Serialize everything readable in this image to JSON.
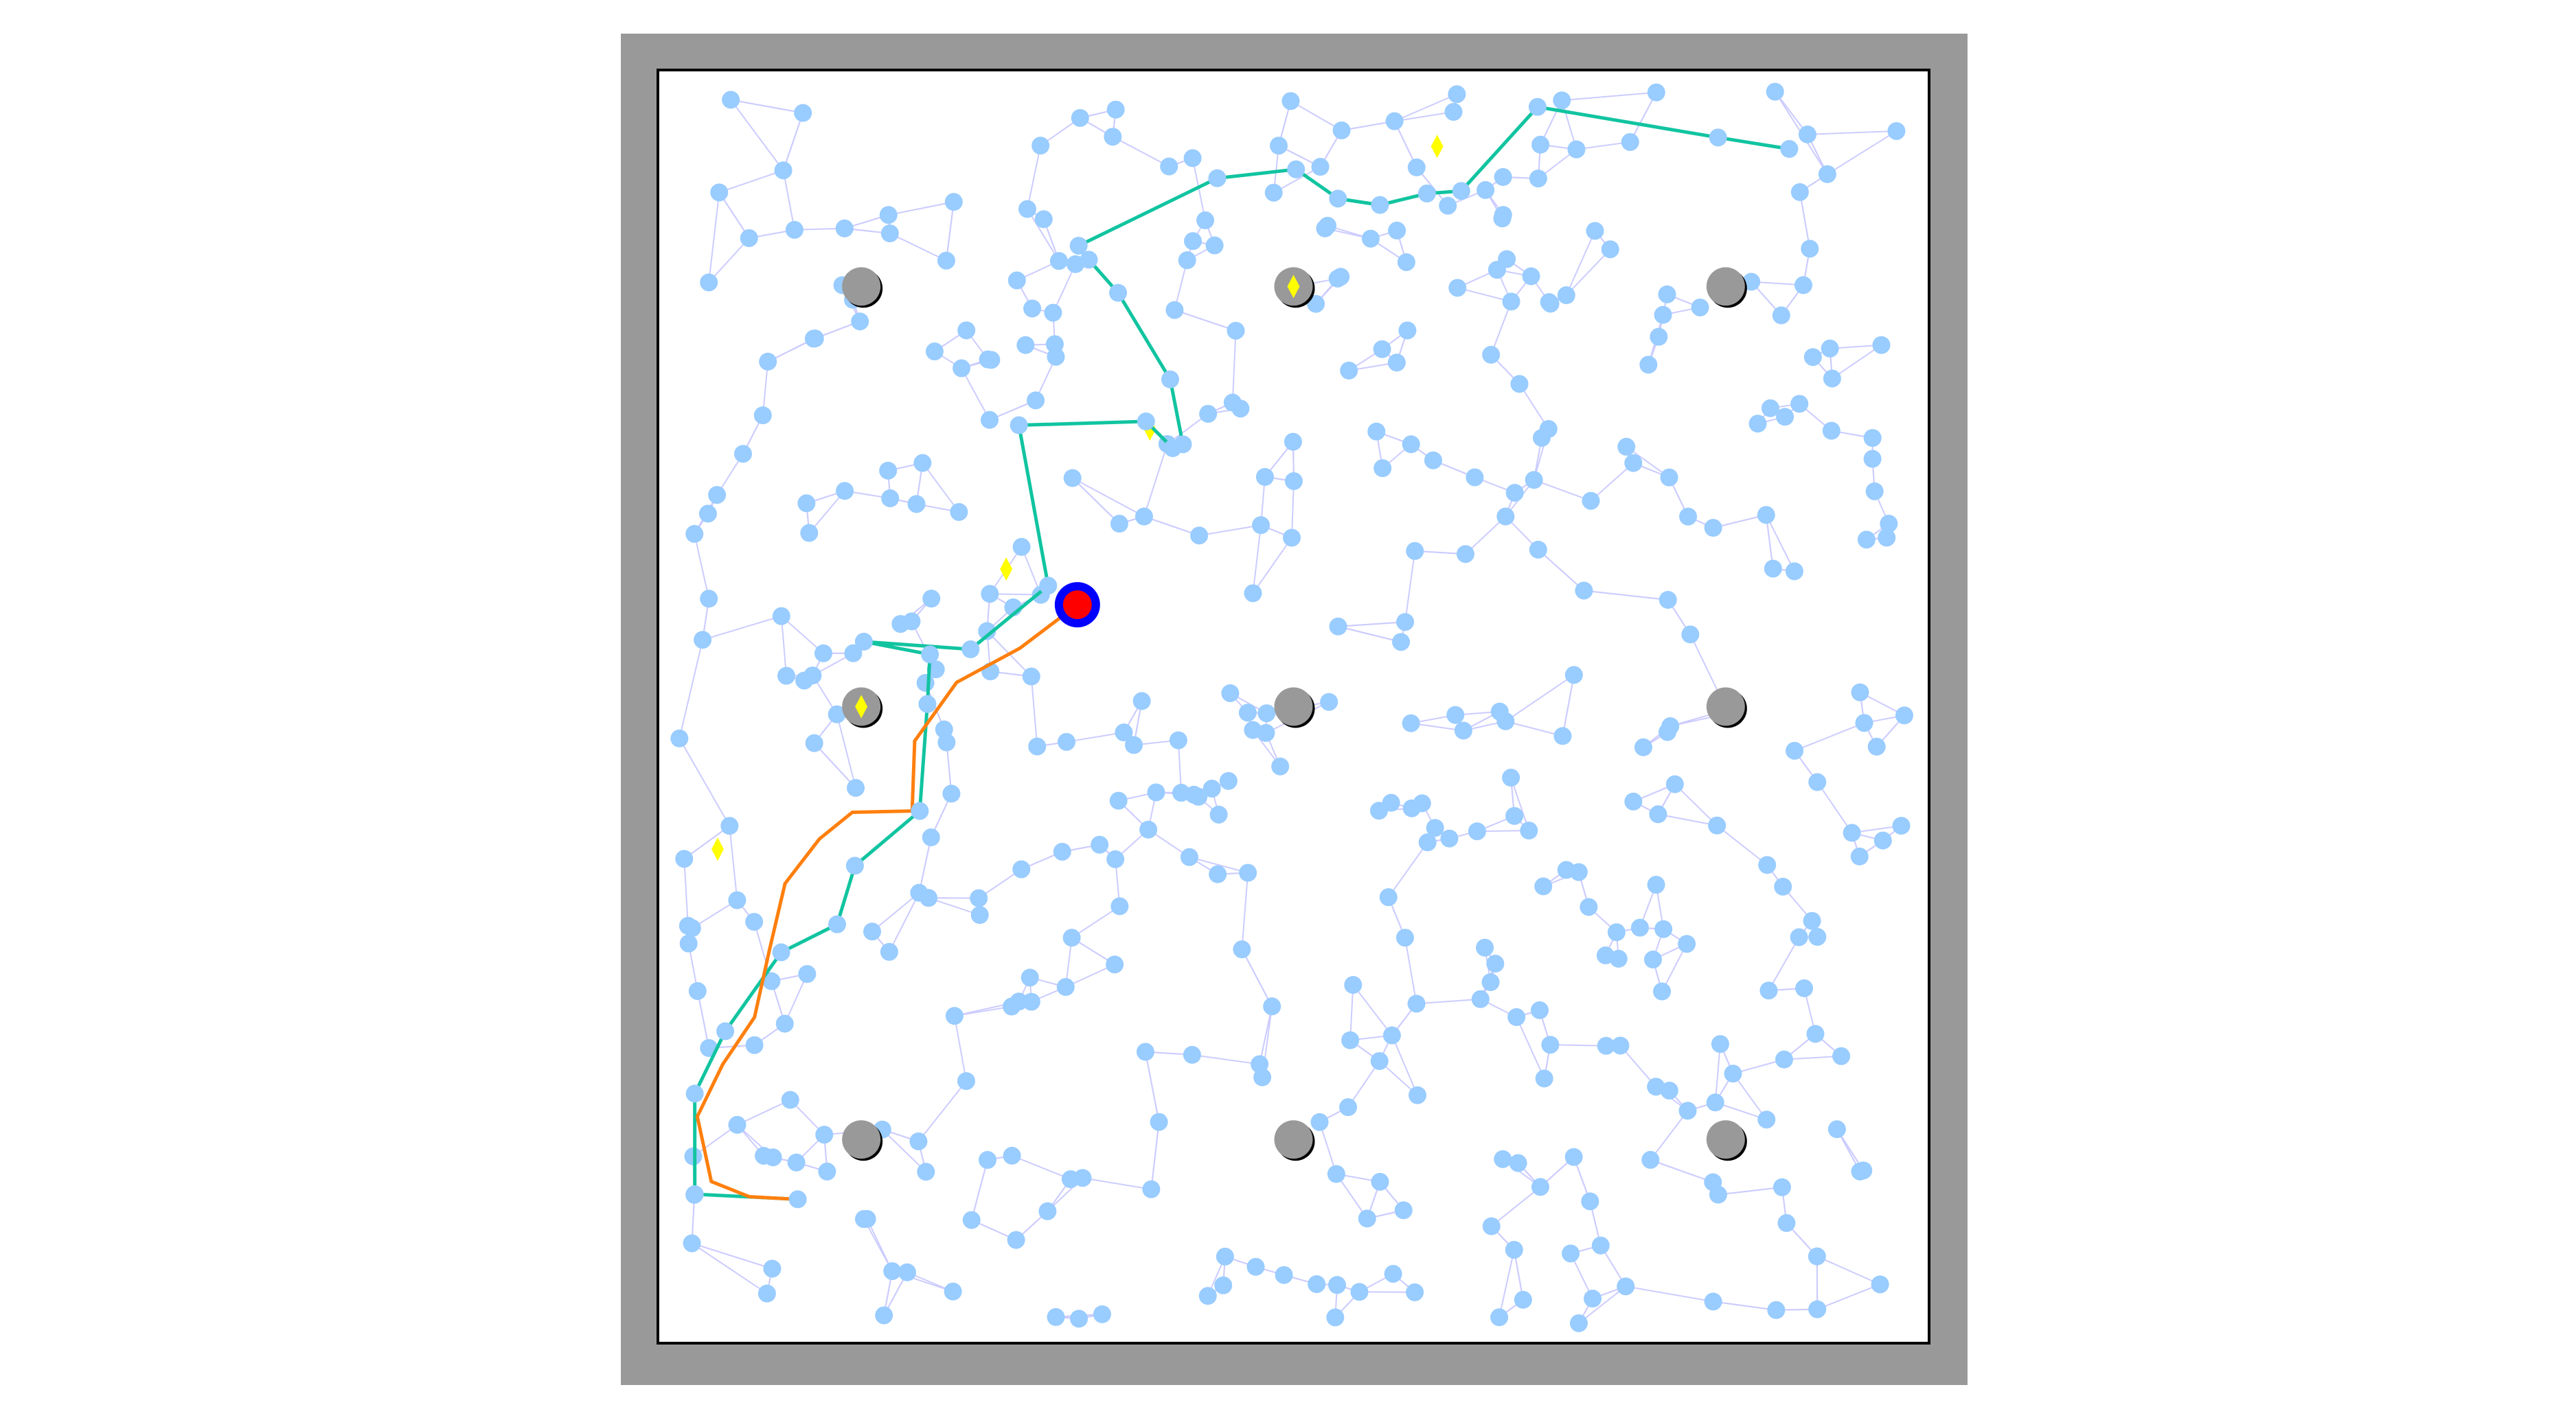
{
  "colors": {
    "wall": "#999999",
    "field": "#ffffff",
    "field_border": "#000000",
    "node": "#99ccff",
    "edge": "#ccccff",
    "obstacle": "#999999",
    "goal_marker": "#ffff00",
    "path_primary": "#11c4a0",
    "path_smoothed": "#ff7f0e",
    "robot_outer": "#0000ff",
    "robot_inner": "#ff0000"
  },
  "map": {
    "world": {
      "x_range": [
        0,
        100
      ],
      "y_range": [
        0,
        100
      ]
    },
    "obstacles": [
      {
        "x": 16,
        "y": 83
      },
      {
        "x": 50,
        "y": 83
      },
      {
        "x": 84,
        "y": 83
      },
      {
        "x": 16,
        "y": 50
      },
      {
        "x": 50,
        "y": 50
      },
      {
        "x": 84,
        "y": 50
      },
      {
        "x": 16,
        "y": 16
      },
      {
        "x": 50,
        "y": 16
      },
      {
        "x": 84,
        "y": 16
      }
    ],
    "goal_markers": [
      {
        "x": 61.3,
        "y": 94.0
      },
      {
        "x": 50.0,
        "y": 83.0
      },
      {
        "x": 38.7,
        "y": 71.8
      },
      {
        "x": 27.4,
        "y": 60.8
      },
      {
        "x": 16.0,
        "y": 50.0
      },
      {
        "x": 4.7,
        "y": 38.8
      }
    ],
    "robot": {
      "x": 33.0,
      "y": 58.0
    },
    "primary_path": [
      [
        11,
        11.3
      ],
      [
        2.9,
        11.7
      ],
      [
        2.9,
        19.6
      ],
      [
        5.3,
        24.5
      ],
      [
        9.7,
        30.7
      ],
      [
        14.1,
        32.9
      ],
      [
        15.5,
        37.5
      ],
      [
        20.6,
        41.8
      ],
      [
        21.2,
        50.2
      ],
      [
        21.4,
        54.1
      ],
      [
        16.2,
        55.1
      ],
      [
        24.6,
        54.5
      ],
      [
        30.7,
        59.5
      ],
      [
        28.4,
        72.1
      ],
      [
        38.4,
        72.4
      ],
      [
        40.5,
        70.3
      ],
      [
        41.3,
        70.6
      ],
      [
        40.3,
        75.7
      ],
      [
        36.2,
        82.5
      ],
      [
        33.9,
        85.1
      ],
      [
        33.1,
        86.2
      ],
      [
        44.0,
        91.5
      ],
      [
        50.2,
        92.2
      ],
      [
        53.5,
        89.9
      ],
      [
        56.8,
        89.4
      ],
      [
        60.5,
        90.3
      ],
      [
        63.2,
        90.5
      ],
      [
        69.2,
        97.1
      ],
      [
        83.4,
        94.7
      ],
      [
        89.0,
        93.8
      ]
    ],
    "smoothed_path": [
      [
        33.0,
        58.0
      ],
      [
        28.5,
        54.6
      ],
      [
        23.5,
        51.9
      ],
      [
        20.2,
        47.3
      ],
      [
        20.0,
        41.8
      ],
      [
        15.3,
        41.7
      ],
      [
        12.7,
        39.6
      ],
      [
        10.0,
        36.1
      ],
      [
        8.8,
        31.0
      ],
      [
        7.6,
        25.6
      ],
      [
        5.1,
        21.9
      ],
      [
        3.1,
        17.8
      ],
      [
        4.2,
        12.7
      ],
      [
        7.2,
        11.5
      ],
      [
        11.0,
        11.3
      ]
    ]
  }
}
